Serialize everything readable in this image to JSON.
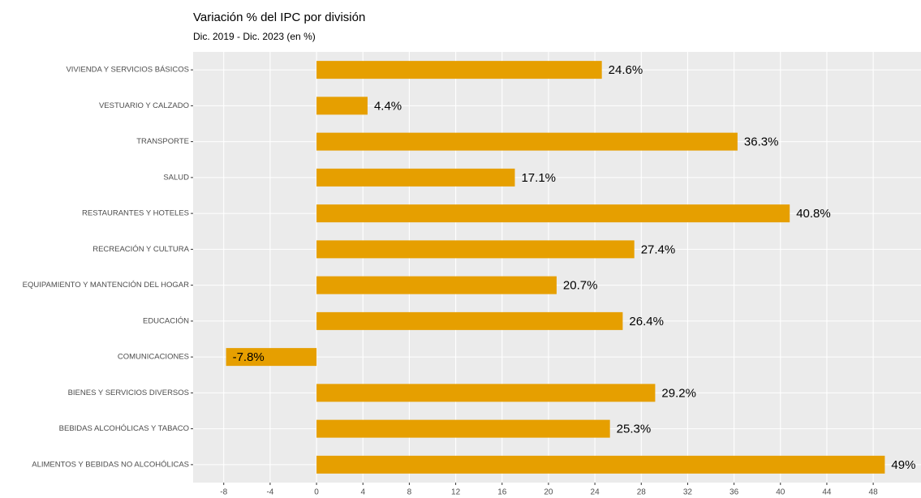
{
  "chart_data": {
    "type": "bar",
    "orientation": "horizontal",
    "title": "Variación % del IPC por división",
    "subtitle": "Dic. 2019 - Dic. 2023 (en %)",
    "categories": [
      "VIVIENDA Y SERVICIOS BÁSICOS",
      "VESTUARIO Y CALZADO",
      "TRANSPORTE",
      "SALUD",
      "RESTAURANTES Y HOTELES",
      "RECREACIÓN Y CULTURA",
      "EQUIPAMIENTO Y MANTENCIÓN DEL HOGAR",
      "EDUCACIÓN",
      "COMUNICACIONES",
      "BIENES Y SERVICIOS DIVERSOS",
      "BEBIDAS ALCOHÓLICAS Y TABACO",
      "ALIMENTOS Y BEBIDAS NO ALCOHÓLICAS"
    ],
    "values": [
      24.6,
      4.4,
      36.3,
      17.1,
      40.8,
      27.4,
      20.7,
      26.4,
      -7.8,
      29.2,
      25.3,
      49
    ],
    "value_labels": [
      "24.6%",
      "4.4%",
      "36.3%",
      "17.1%",
      "40.8%",
      "27.4%",
      "20.7%",
      "26.4%",
      "-7.8%",
      "29.2%",
      "25.3%",
      "49%"
    ],
    "color": "#E69F00",
    "xlim": [
      -10.64,
      51.84
    ],
    "xticks": [
      -8,
      -4,
      0,
      4,
      8,
      12,
      16,
      20,
      24,
      28,
      32,
      36,
      40,
      44,
      48
    ],
    "grid": true
  }
}
